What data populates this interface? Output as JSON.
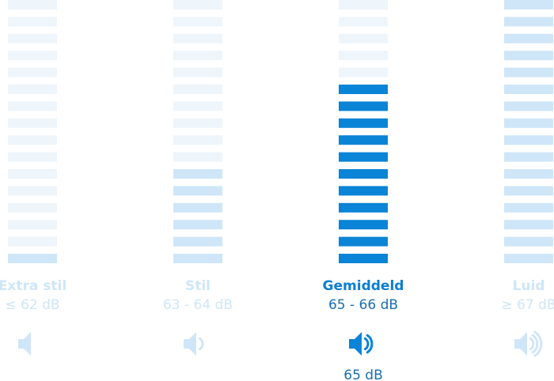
{
  "total_bars": 16,
  "active": 2,
  "current": "65 dB",
  "levels": [
    {
      "label": "Extra stil",
      "range": "≤ 62 dB",
      "filled": 1
    },
    {
      "label": "Stil",
      "range": "63 - 64 dB",
      "filled": 6
    },
    {
      "label": "Gemiddeld",
      "range": "65 - 66 dB",
      "filled": 11
    },
    {
      "label": "Luid",
      "range": "≥ 67 dB",
      "filled": 16
    }
  ]
}
